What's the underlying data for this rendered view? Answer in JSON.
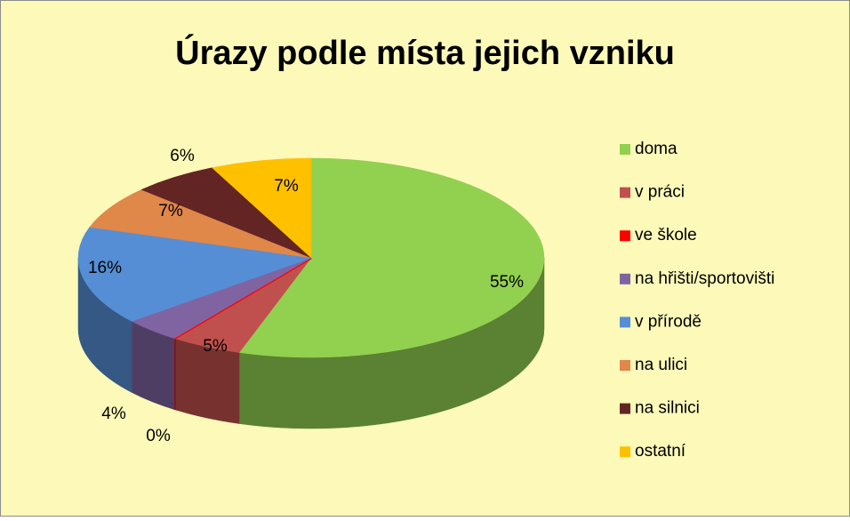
{
  "chart_data": {
    "type": "pie",
    "title": "Úrazy podle místa jejich vzniku",
    "categories": [
      "doma",
      "v práci",
      "ve škole",
      "na hřišti/sportovišti",
      "v přírodě",
      "na ulici",
      "na silnici",
      "ostatní"
    ],
    "values": [
      55,
      5,
      0,
      4,
      16,
      7,
      6,
      7
    ],
    "value_labels": [
      "55%",
      "5%",
      "0%",
      "4%",
      "16%",
      "7%",
      "6%",
      "7%"
    ],
    "colors": [
      "#92d050",
      "#c0504d",
      "#ff0000",
      "#8064a2",
      "#558ed5",
      "#e0874a",
      "#632523",
      "#ffc000"
    ],
    "legend": "right"
  }
}
